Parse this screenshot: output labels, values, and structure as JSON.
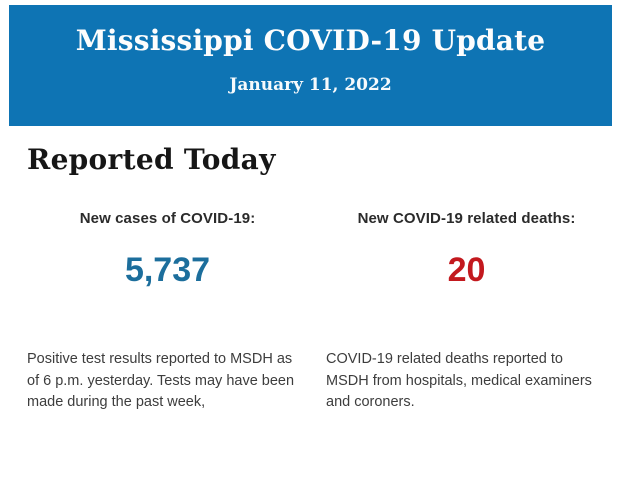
{
  "colors": {
    "banner_background": "#0e74b4",
    "banner_text": "#fdfdfd",
    "heading_text": "#161616",
    "label_text": "#2b2b2b",
    "cases_value_color": "#1c6e9c",
    "deaths_value_color": "#c3191e",
    "body_text": "#3d3d3d",
    "page_background": "#ffffff"
  },
  "header": {
    "title": "Mississippi COVID-19 Update",
    "date": "January 11, 2022"
  },
  "section": {
    "heading": "Reported Today"
  },
  "stats": {
    "cases": {
      "label": "New cases of COVID-19:",
      "value": "5,737",
      "description": "Positive test results reported to MSDH as\nof 6 p.m. yesterday. Tests may have been\nmade during the past week,"
    },
    "deaths": {
      "label": "New COVID-19 related deaths:",
      "value": "20",
      "description": "COVID-19 related deaths reported to\nMSDH from hospitals, medical examiners\nand coroners."
    }
  }
}
